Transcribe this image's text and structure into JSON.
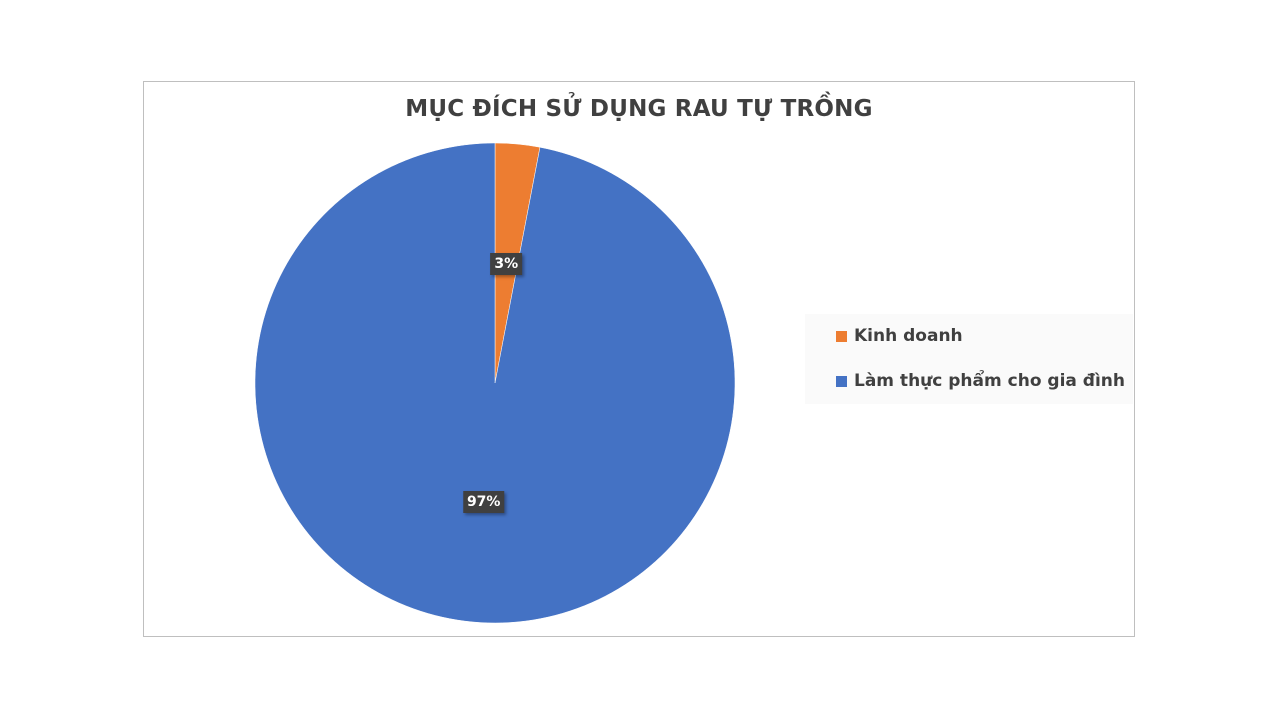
{
  "chart_data": {
    "type": "pie",
    "title": "MỤC ĐÍCH SỬ DỤNG RAU TỰ TRỒNG",
    "slices": [
      {
        "label": "Kinh doanh",
        "value": 3,
        "data_label": "3%",
        "color": "#ED7D31"
      },
      {
        "label": "Làm thực phẩm cho gia đình",
        "value": 97,
        "data_label": "97%",
        "color": "#4472C4"
      }
    ],
    "legend_position": "right",
    "start_angle": "top",
    "direction": "clockwise"
  }
}
